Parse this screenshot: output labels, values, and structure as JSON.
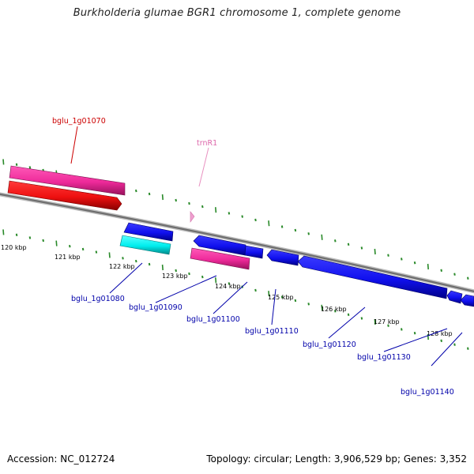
{
  "header": {
    "title": "Burkholderia glumae BGR1 chromosome 1, complete genome"
  },
  "footer": {
    "accession": "Accession: NC_012724",
    "summary": "Topology: circular; Length: 3,906,529 bp; Genes: 3,352"
  },
  "colors": {
    "backbone": "#8a8a8a",
    "tick": "#2a8a2a",
    "gene_blue": "#1010ee",
    "gene_red": "#ee1010",
    "gene_pink": "#ee2a9a",
    "gene_cyan": "#00eeee",
    "trna": "#f0a0d0",
    "label_blue": "#0000aa",
    "label_red": "#cc0000",
    "label_pink": "#dd66aa"
  },
  "scale_labels": [
    "120 kbp",
    "121 kbp",
    "122 kbp",
    "123 kbp",
    "124 kbp",
    "125 kbp",
    "126 kbp",
    "127 kbp",
    "128 kbp"
  ],
  "gene_labels": {
    "bglu_1g01070": "bglu_1g01070",
    "trnR1": "trnR1",
    "bglu_1g01080": "bglu_1g01080",
    "bglu_1g01090": "bglu_1g01090",
    "bglu_1g01100": "bglu_1g01100",
    "bglu_1g01110": "bglu_1g01110",
    "bglu_1g01120": "bglu_1g01120",
    "bglu_1g01130": "bglu_1g01130",
    "bglu_1g01140": "bglu_1g01140"
  }
}
